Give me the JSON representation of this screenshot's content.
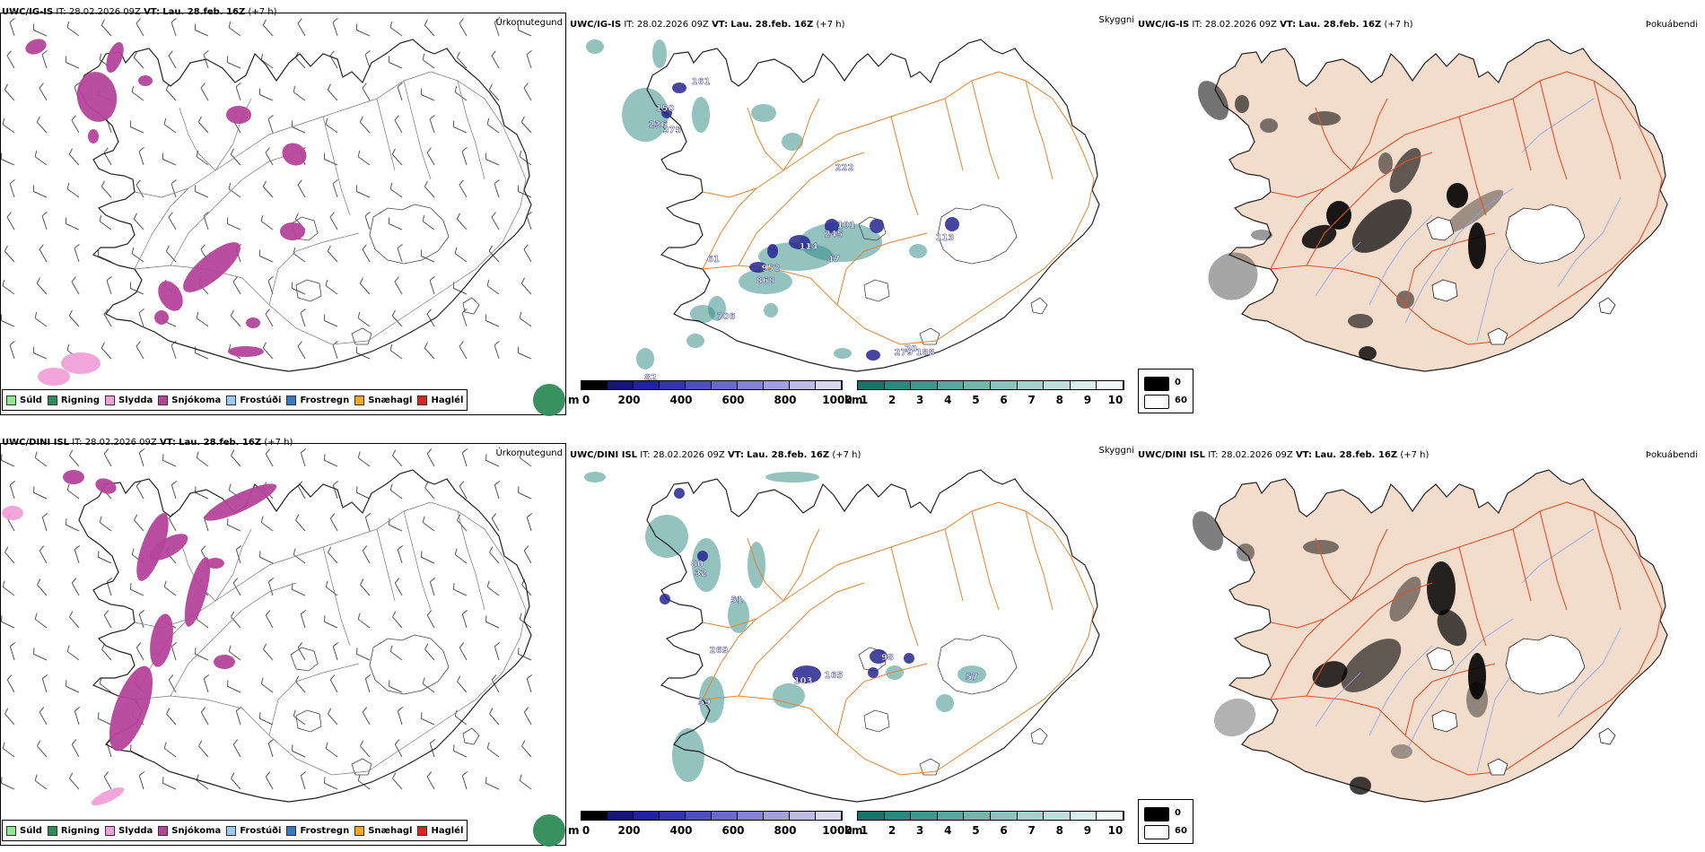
{
  "rows": [
    {
      "model": "UWC/IG-IS",
      "it_label": "IT:",
      "it_value": "28.02.2026 09Z",
      "vt_label": "VT:",
      "vt_value": "Lau. 28.feb. 16Z",
      "lead": "(+7 h)",
      "titles": {
        "precip_type": "Úrkomutegund",
        "visibility": "Skyggni",
        "fog": "Þokuábendi"
      },
      "visibility_labels": [
        "150",
        "236",
        "375",
        "161",
        "245",
        "114",
        "101",
        "952",
        "868",
        "706",
        "113",
        "82",
        "222",
        "70",
        "279",
        "188",
        "47",
        "61"
      ]
    },
    {
      "model": "UWC/DINI ISL",
      "it_label": "IT:",
      "it_value": "28.02.2026 09Z",
      "vt_label": "VT:",
      "vt_value": "Lau. 28.feb. 16Z",
      "lead": "(+7 h)",
      "titles": {
        "precip_type": "Úrkomutegund",
        "visibility": "Skyggni",
        "fog": "Þokuábendi"
      },
      "visibility_labels": [
        "80",
        "32",
        "51",
        "98",
        "165",
        "103",
        "269",
        "59",
        "57"
      ]
    }
  ],
  "precip_legend": [
    {
      "label": "Súld",
      "color": "#8fe88f"
    },
    {
      "label": "Rigning",
      "color": "#2e8b57"
    },
    {
      "label": "Slydda",
      "color": "#f0a0d8"
    },
    {
      "label": "Snjókoma",
      "color": "#b5449b"
    },
    {
      "label": "Frostúði",
      "color": "#9cc9f0"
    },
    {
      "label": "Frostregn",
      "color": "#3a78bf"
    },
    {
      "label": "Snæhagl",
      "color": "#f5a623"
    },
    {
      "label": "Haglél",
      "color": "#e32222"
    }
  ],
  "ceiling_scale": {
    "unit": "m",
    "ticks": [
      "0",
      "200",
      "400",
      "600",
      "800",
      "1000"
    ],
    "colors": [
      "#000000",
      "#151575",
      "#22229a",
      "#3535b0",
      "#4f4fb8",
      "#6a6ac4",
      "#8585cf",
      "#a0a0da",
      "#bcbce4",
      "#d8d8ef"
    ]
  },
  "visibility_scale": {
    "unit": "km",
    "ticks": [
      "1",
      "2",
      "3",
      "4",
      "5",
      "6",
      "7",
      "8",
      "9",
      "10"
    ],
    "colors": [
      "#1f6f6a",
      "#2f8580",
      "#47948f",
      "#5fa39f",
      "#77b2ae",
      "#8fc1be",
      "#a7d0cd",
      "#bfdfdd",
      "#d7eeec",
      "#eef8f7"
    ]
  },
  "fog_scale": {
    "high": "0",
    "low": "60"
  },
  "colors": {
    "snow": "#b5449b",
    "sleet": "#f0a0d8",
    "rain": "#2e8b57",
    "road": "#e8822a",
    "land_fog": "#f2dccb",
    "fog_road": "#e0502a",
    "river": "#8fa0e8",
    "low_ceiling": "#262690",
    "vis_teal": "#3a8f8a"
  }
}
